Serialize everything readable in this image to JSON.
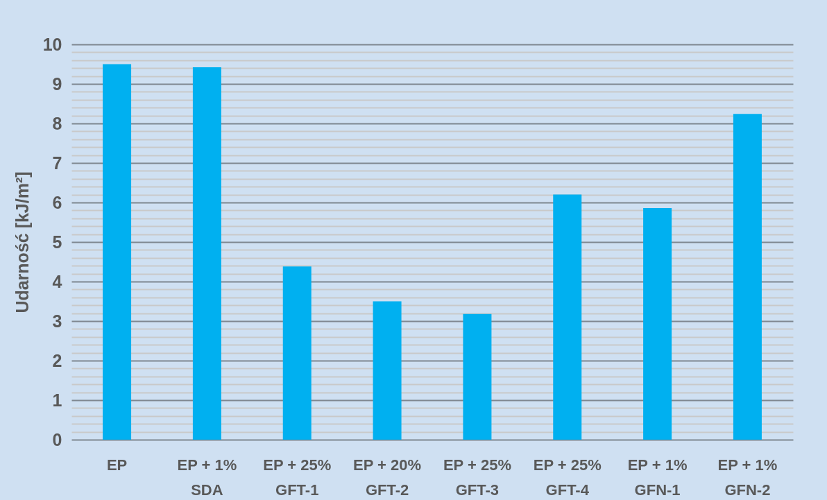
{
  "chart_data": {
    "type": "bar",
    "ylabel": "Udarność [kJ/m²]",
    "categories": [
      "EP",
      "EP + 1%\nSDA",
      "EP + 25%\nGFT-1",
      "EP + 20%\nGFT-2",
      "EP + 25%\nGFT-3",
      "EP + 25%\nGFT-4",
      "EP + 1%\nGFN-1",
      "EP + 1%\nGFN-2"
    ],
    "values": [
      9.5,
      9.42,
      4.38,
      3.5,
      3.18,
      6.2,
      5.86,
      8.24
    ],
    "color": "#00b0f0",
    "ylim": [
      0,
      10
    ],
    "yticks": [
      0,
      {
        "value": 0.2,
        "label": null
      },
      {
        "value": 0.4,
        "label": null
      },
      {
        "value": 0.6,
        "label": null
      },
      {
        "value": 0.8,
        "label": null
      },
      1,
      {
        "value": 1.2,
        "label": null
      },
      {
        "value": 1.4,
        "label": null
      },
      {
        "value": 1.6,
        "label": null
      },
      {
        "value": 1.8,
        "label": null
      },
      2,
      {
        "value": 2.2,
        "label": null
      },
      {
        "value": 2.4,
        "label": null
      },
      {
        "value": 2.6,
        "label": null
      },
      {
        "value": 2.8,
        "label": null
      },
      3,
      {
        "value": 3.2,
        "label": null
      },
      {
        "value": 3.4,
        "label": null
      },
      {
        "value": 3.6,
        "label": null
      },
      {
        "value": 3.8,
        "label": null
      },
      4,
      {
        "value": 4.2,
        "label": null
      },
      {
        "value": 4.4,
        "label": null
      },
      {
        "value": 4.6,
        "label": null
      },
      {
        "value": 4.8,
        "label": null
      },
      5,
      {
        "value": 5.2,
        "label": null
      },
      {
        "value": 5.4,
        "label": null
      },
      {
        "value": 5.6,
        "label": null
      },
      {
        "value": 5.8,
        "label": null
      },
      6,
      {
        "value": 6.2,
        "label": null
      },
      {
        "value": 6.4,
        "label": null
      },
      {
        "value": 6.6,
        "label": null
      },
      {
        "value": 6.8,
        "label": null
      },
      7,
      {
        "value": 7.2,
        "label": null
      },
      {
        "value": 7.4,
        "label": null
      },
      {
        "value": 7.6,
        "label": null
      },
      {
        "value": 7.8,
        "label": null
      },
      8,
      {
        "value": 8.2,
        "label": null
      },
      {
        "value": 8.4,
        "label": null
      },
      {
        "value": 8.6,
        "label": null
      },
      {
        "value": 8.8,
        "label": null
      },
      9,
      {
        "value": 9.2,
        "label": null
      },
      {
        "value": 9.4,
        "label": null
      },
      {
        "value": 9.6,
        "label": null
      },
      {
        "value": 9.8,
        "label": null
      },
      10
    ],
    "grid": true
  }
}
